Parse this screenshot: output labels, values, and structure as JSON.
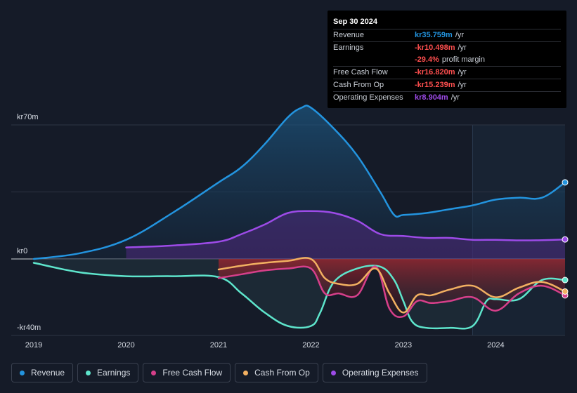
{
  "chart_data": {
    "type": "area",
    "title": "",
    "y_axis": {
      "top_label": "kr70m",
      "zero_label": "kr0",
      "bottom_label": "-kr40m",
      "ylim": [
        -40,
        80
      ]
    },
    "x_axis": {
      "ticks": [
        "2019",
        "2020",
        "2021",
        "2022",
        "2023",
        "2024"
      ],
      "xlim": [
        2019.0,
        2024.75
      ]
    },
    "forecast_start": 2023.75,
    "series": [
      {
        "name": "Revenue",
        "color": "#2394df",
        "x": [
          2019.0,
          2019.5,
          2020.0,
          2020.5,
          2021.0,
          2021.25,
          2021.5,
          2021.75,
          2021.9,
          2022.0,
          2022.25,
          2022.5,
          2022.75,
          2022.9,
          2023.0,
          2023.25,
          2023.5,
          2023.75,
          2024.0,
          2024.25,
          2024.5,
          2024.75
        ],
        "y": [
          0,
          3,
          10,
          24,
          40,
          48,
          60,
          74,
          79,
          79,
          68,
          54,
          35,
          23,
          23,
          24,
          26,
          28,
          31,
          32,
          32,
          40
        ]
      },
      {
        "name": "Operating Expenses",
        "color": "#9d4be8",
        "x": [
          2020.0,
          2020.5,
          2021.0,
          2021.25,
          2021.5,
          2021.75,
          2022.0,
          2022.25,
          2022.5,
          2022.75,
          2023.0,
          2023.25,
          2023.5,
          2023.75,
          2024.0,
          2024.25,
          2024.5,
          2024.75
        ],
        "y": [
          6,
          7,
          9,
          13,
          18,
          24,
          25,
          24,
          20,
          13,
          12,
          11,
          11,
          10,
          10,
          9.7,
          9.8,
          10.2
        ]
      },
      {
        "name": "Earnings",
        "color": "#5ee5cc",
        "x": [
          2019.0,
          2019.5,
          2020.0,
          2020.5,
          2021.0,
          2021.25,
          2021.5,
          2021.75,
          2022.0,
          2022.1,
          2022.25,
          2022.5,
          2022.75,
          2022.9,
          2023.0,
          2023.1,
          2023.25,
          2023.5,
          2023.75,
          2023.9,
          2024.0,
          2024.25,
          2024.5,
          2024.75
        ],
        "y": [
          -2,
          -7,
          -9,
          -9,
          -9.5,
          -18,
          -28,
          -35,
          -35,
          -28,
          -12,
          -5,
          -4,
          -11,
          -22,
          -33,
          -36,
          -36,
          -35,
          -22,
          -21,
          -21,
          -11,
          -11
        ]
      },
      {
        "name": "Free Cash Flow",
        "color": "#d63f8a",
        "x": [
          2021.0,
          2021.25,
          2021.5,
          2021.75,
          2022.0,
          2022.15,
          2022.3,
          2022.5,
          2022.7,
          2022.85,
          2023.0,
          2023.15,
          2023.3,
          2023.5,
          2023.75,
          2024.0,
          2024.25,
          2024.5,
          2024.75
        ],
        "y": [
          -10,
          -8,
          -6,
          -5,
          -5,
          -18,
          -18,
          -19,
          -4,
          -26,
          -30,
          -22,
          -23,
          -22,
          -20,
          -27,
          -18,
          -14,
          -19
        ]
      },
      {
        "name": "Cash From Op",
        "color": "#f2b061",
        "x": [
          2021.0,
          2021.25,
          2021.5,
          2021.75,
          2022.0,
          2022.15,
          2022.3,
          2022.5,
          2022.7,
          2022.85,
          2023.0,
          2023.15,
          2023.3,
          2023.5,
          2023.75,
          2024.0,
          2024.25,
          2024.5,
          2024.75
        ],
        "y": [
          -5.5,
          -3.5,
          -2,
          -1,
          0,
          -10,
          -13,
          -13,
          -5,
          -18,
          -28,
          -19,
          -19,
          -16,
          -14,
          -20,
          -15,
          -12,
          -17
        ]
      }
    ]
  },
  "tooltip": {
    "date": "Sep 30 2024",
    "rows": [
      {
        "label": "Revenue",
        "value": "kr35.759m",
        "unit": "/yr",
        "color": "#2394df"
      },
      {
        "label": "Earnings",
        "value": "-kr10.498m",
        "unit": "/yr",
        "color": "#ff4f4f"
      },
      {
        "label": "",
        "value": "-29.4%",
        "unit": "profit margin",
        "color": "#ff4f4f"
      },
      {
        "label": "Free Cash Flow",
        "value": "-kr16.820m",
        "unit": "/yr",
        "color": "#ff4f4f"
      },
      {
        "label": "Cash From Op",
        "value": "-kr15.239m",
        "unit": "/yr",
        "color": "#ff4f4f"
      },
      {
        "label": "Operating Expenses",
        "value": "kr8.904m",
        "unit": "/yr",
        "color": "#9d4be8"
      }
    ]
  },
  "legend": [
    {
      "label": "Revenue",
      "color": "#2394df"
    },
    {
      "label": "Earnings",
      "color": "#5ee5cc"
    },
    {
      "label": "Free Cash Flow",
      "color": "#d63f8a"
    },
    {
      "label": "Cash From Op",
      "color": "#f2b061"
    },
    {
      "label": "Operating Expenses",
      "color": "#9d4be8"
    }
  ]
}
